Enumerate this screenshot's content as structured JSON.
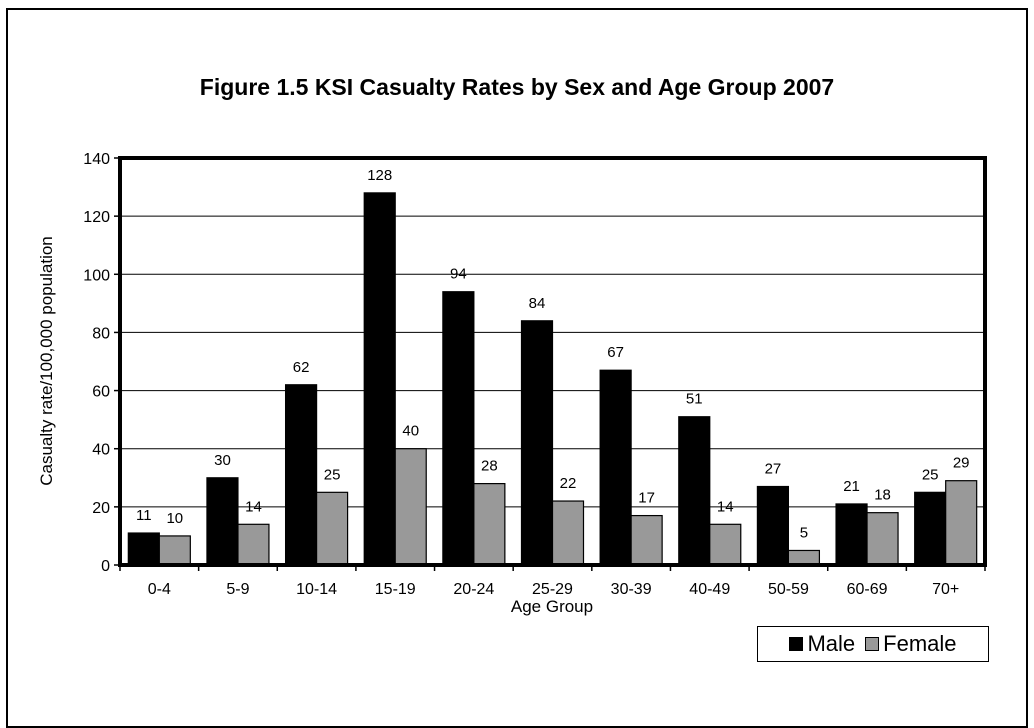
{
  "chart_data": {
    "type": "bar",
    "title": "Figure 1.5 KSI Casualty Rates by Sex and Age Group 2007",
    "xlabel": "Age Group",
    "ylabel": "Casualty rate/100,000 population",
    "ylim": [
      0,
      140
    ],
    "yticks": [
      "0",
      "20",
      "40",
      "60",
      "80",
      "100",
      "120",
      "140"
    ],
    "grid": true,
    "legend": "bottom-right",
    "categories": [
      "0-4",
      "5-9",
      "10-14",
      "15-19",
      "20-24",
      "25-29",
      "30-39",
      "40-49",
      "50-59",
      "60-69",
      "70+"
    ],
    "series": [
      {
        "name": "Male",
        "color": "#000000",
        "values": [
          11,
          30,
          62,
          128,
          94,
          84,
          67,
          51,
          27,
          21,
          25
        ]
      },
      {
        "name": "Female",
        "color": "#999999",
        "values": [
          10,
          14,
          25,
          40,
          28,
          22,
          17,
          14,
          5,
          18,
          29
        ]
      }
    ]
  }
}
